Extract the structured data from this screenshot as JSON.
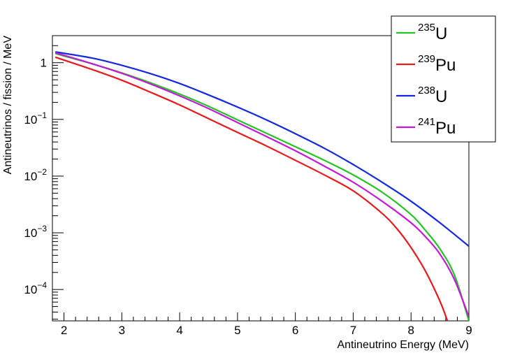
{
  "chart_data": {
    "type": "line",
    "xlabel": "Antineutrino Energy (MeV)",
    "ylabel": "Antineutrinos / fission / MeV",
    "xlim": [
      1.8,
      9.0
    ],
    "ylim": [
      2.8e-05,
      3.0
    ],
    "yscale": "log",
    "grid": false,
    "legend_position": "top-right",
    "x_ticks": [
      2,
      3,
      4,
      5,
      6,
      7,
      8,
      9
    ],
    "y_ticks": [
      {
        "value": 1,
        "base": "1",
        "exp": ""
      },
      {
        "value": 0.1,
        "base": "10",
        "exp": "−1"
      },
      {
        "value": 0.01,
        "base": "10",
        "exp": "−2"
      },
      {
        "value": 0.001,
        "base": "10",
        "exp": "−3"
      },
      {
        "value": 0.0001,
        "base": "10",
        "exp": "−4"
      }
    ],
    "series": [
      {
        "name": "235U",
        "isotope_mass": "235",
        "element": "U",
        "color": "#22c322",
        "x": [
          1.85,
          2.5,
          3.0,
          3.5,
          4.0,
          4.5,
          5.0,
          5.5,
          6.0,
          6.5,
          7.0,
          7.5,
          8.0,
          8.25,
          8.5,
          8.75,
          9.0
        ],
        "y": [
          1.45,
          0.95,
          0.66,
          0.44,
          0.28,
          0.17,
          0.098,
          0.057,
          0.033,
          0.019,
          0.0105,
          0.0052,
          0.0021,
          0.0011,
          0.00052,
          0.00018,
          2.8e-05
        ]
      },
      {
        "name": "239Pu",
        "isotope_mass": "239",
        "element": "Pu",
        "color": "#e8191c",
        "x": [
          1.85,
          2.5,
          3.0,
          3.5,
          4.0,
          4.5,
          5.0,
          5.5,
          6.0,
          6.5,
          7.0,
          7.5,
          7.75,
          8.0,
          8.25,
          8.5,
          8.63
        ],
        "y": [
          1.25,
          0.75,
          0.49,
          0.3,
          0.18,
          0.103,
          0.059,
          0.034,
          0.019,
          0.0105,
          0.0055,
          0.0022,
          0.0012,
          0.00055,
          0.00021,
          6.2e-05,
          2.8e-05
        ]
      },
      {
        "name": "238U",
        "isotope_mass": "238",
        "element": "U",
        "color": "#1428e0",
        "x": [
          1.85,
          2.5,
          3.0,
          3.5,
          4.0,
          4.5,
          5.0,
          5.5,
          6.0,
          6.5,
          7.0,
          7.5,
          8.0,
          8.5,
          9.0
        ],
        "y": [
          1.55,
          1.2,
          0.9,
          0.64,
          0.43,
          0.27,
          0.165,
          0.098,
          0.056,
          0.031,
          0.016,
          0.0078,
          0.0036,
          0.0015,
          0.00058
        ]
      },
      {
        "name": "241Pu",
        "isotope_mass": "241",
        "element": "Pu",
        "color": "#c21ad6",
        "x": [
          1.85,
          2.5,
          3.0,
          3.5,
          4.0,
          4.5,
          5.0,
          5.5,
          6.0,
          6.5,
          7.0,
          7.5,
          8.0,
          8.25,
          8.5,
          8.75,
          9.0
        ],
        "y": [
          1.5,
          0.95,
          0.65,
          0.42,
          0.26,
          0.155,
          0.088,
          0.05,
          0.028,
          0.015,
          0.0078,
          0.0036,
          0.0015,
          0.00085,
          0.00042,
          0.00015,
          3.3e-05
        ]
      }
    ]
  }
}
